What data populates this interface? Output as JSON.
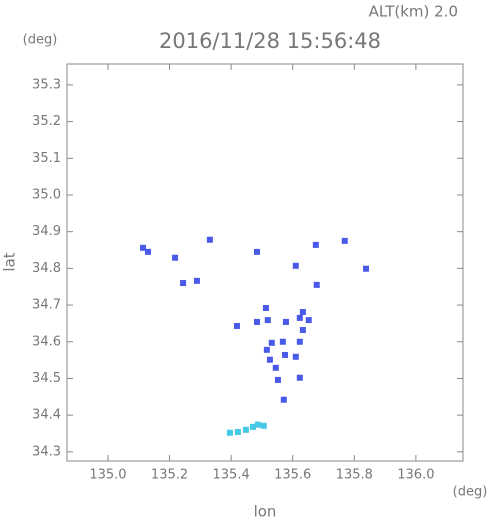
{
  "chart_data": {
    "type": "scatter",
    "header": "ALT(km) 2.0",
    "title": "2016/11/28 15:56:48",
    "y_unit": "(deg)",
    "x_unit": "(deg)",
    "ylabel": "lat",
    "xlabel": "lon",
    "xlim": [
      134.867,
      136.153
    ],
    "ylim": [
      34.275,
      35.357
    ],
    "xticks": [
      {
        "value": 135.0,
        "label": "135.0"
      },
      135.2,
      135.4,
      135.6,
      135.8,
      {
        "value": 136.0,
        "label": "136.0"
      }
    ],
    "yticks": [
      34.3,
      34.4,
      34.5,
      34.6,
      34.7,
      34.8,
      34.9,
      {
        "value": 35.0,
        "label": "35.0"
      },
      35.1,
      35.2,
      35.3
    ],
    "series": [
      {
        "color": "#4a5ae8",
        "x": [
          135.114,
          135.13,
          135.218,
          135.244,
          135.289,
          135.331,
          135.484,
          135.61,
          135.675,
          135.769,
          135.838,
          135.678,
          135.419,
          135.484,
          135.513,
          135.519,
          135.532,
          135.568,
          135.578,
          135.623,
          135.633,
          135.633,
          135.652,
          135.623,
          135.516,
          135.526,
          135.545,
          135.575,
          135.61,
          135.552,
          135.623,
          135.571
        ],
        "values": [
          34.856,
          34.845,
          34.829,
          34.76,
          34.766,
          34.878,
          34.845,
          34.807,
          34.864,
          34.875,
          34.799,
          34.755,
          34.643,
          34.654,
          34.692,
          34.659,
          34.597,
          34.6,
          34.654,
          34.665,
          34.681,
          34.632,
          34.659,
          34.6,
          34.578,
          34.551,
          34.529,
          34.564,
          34.559,
          34.496,
          34.502,
          34.442
        ]
      },
      {
        "color": "#46c8e8",
        "x": [
          135.396,
          135.422,
          135.448,
          135.471,
          135.487,
          135.506
        ],
        "values": [
          34.352,
          34.354,
          34.36,
          34.368,
          34.374,
          34.371
        ]
      }
    ]
  }
}
